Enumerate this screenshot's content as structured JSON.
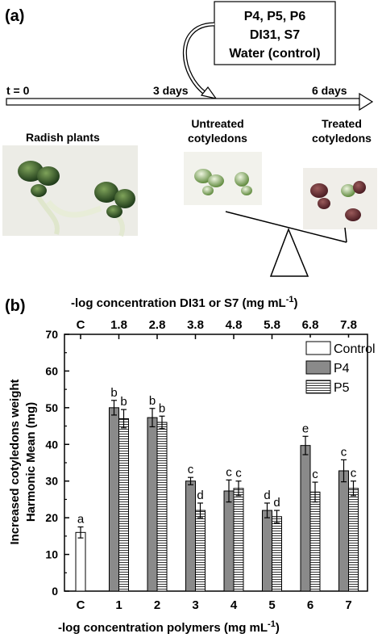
{
  "panel_a": {
    "label": "(a)",
    "treatment_box": {
      "lines": [
        "P4, P5, P6",
        "DI31, S7",
        "Water (control)"
      ]
    },
    "timeline": {
      "t0": "t = 0",
      "day3": "3 days",
      "day6": "6 days"
    },
    "captions": {
      "radish": "Radish plants",
      "untreated_1": "Untreated",
      "untreated_2": "cotyledons",
      "treated_1": "Treated",
      "treated_2": "cotyledons"
    },
    "photo_names": [
      "radish-plants-photo",
      "untreated-cotyledons-photo",
      "treated-cotyledons-photo"
    ]
  },
  "panel_b": {
    "label": "(b)"
  },
  "chart_data": {
    "type": "bar",
    "categories": [
      "C",
      "1",
      "2",
      "3",
      "4",
      "5",
      "6",
      "7"
    ],
    "top_categories": [
      "C",
      "1.8",
      "2.8",
      "3.8",
      "4.8",
      "5.8",
      "6.8",
      "7.8"
    ],
    "xlabel": "-log concentration polymers (mg mL",
    "xlabel_sup": "-1",
    "xlabel_close": ")",
    "top_xlabel": "-log concentration DI31 or S7 (mg mL",
    "top_xlabel_sup": "-1",
    "top_xlabel_close": ")",
    "ylabel_line1": "Increased cotyledons weight",
    "ylabel_line2": "Harmonic Mean (mg)",
    "ylim": [
      0,
      70
    ],
    "yticks": [
      "0",
      "10",
      "20",
      "30",
      "40",
      "50",
      "60",
      "70"
    ],
    "legend_position": "top-right",
    "series": [
      {
        "name": "Control",
        "fill": "#ffffff",
        "pattern": "none",
        "values": [
          16,
          null,
          null,
          null,
          null,
          null,
          null,
          null
        ],
        "errors": [
          1.5,
          null,
          null,
          null,
          null,
          null,
          null,
          null
        ],
        "letters": [
          "a",
          null,
          null,
          null,
          null,
          null,
          null,
          null
        ]
      },
      {
        "name": "P4",
        "fill": "#8a8a8a",
        "pattern": "none",
        "values": [
          null,
          50,
          47.3,
          30,
          27.3,
          22,
          39.7,
          32.8
        ],
        "errors": [
          null,
          2,
          2.5,
          1,
          3,
          2,
          2.5,
          3
        ],
        "letters": [
          null,
          "b",
          "b",
          "c",
          "c",
          "d",
          "e",
          "c"
        ]
      },
      {
        "name": "P5",
        "fill": "#ffffff",
        "pattern": "horizontal-lines",
        "values": [
          null,
          47,
          46,
          22,
          28,
          20.3,
          27,
          28
        ],
        "errors": [
          null,
          2.5,
          1.7,
          2,
          2,
          1.7,
          2.7,
          2
        ],
        "letters": [
          null,
          "b",
          "b",
          "d",
          "c",
          "d",
          "c",
          "c"
        ]
      }
    ]
  }
}
